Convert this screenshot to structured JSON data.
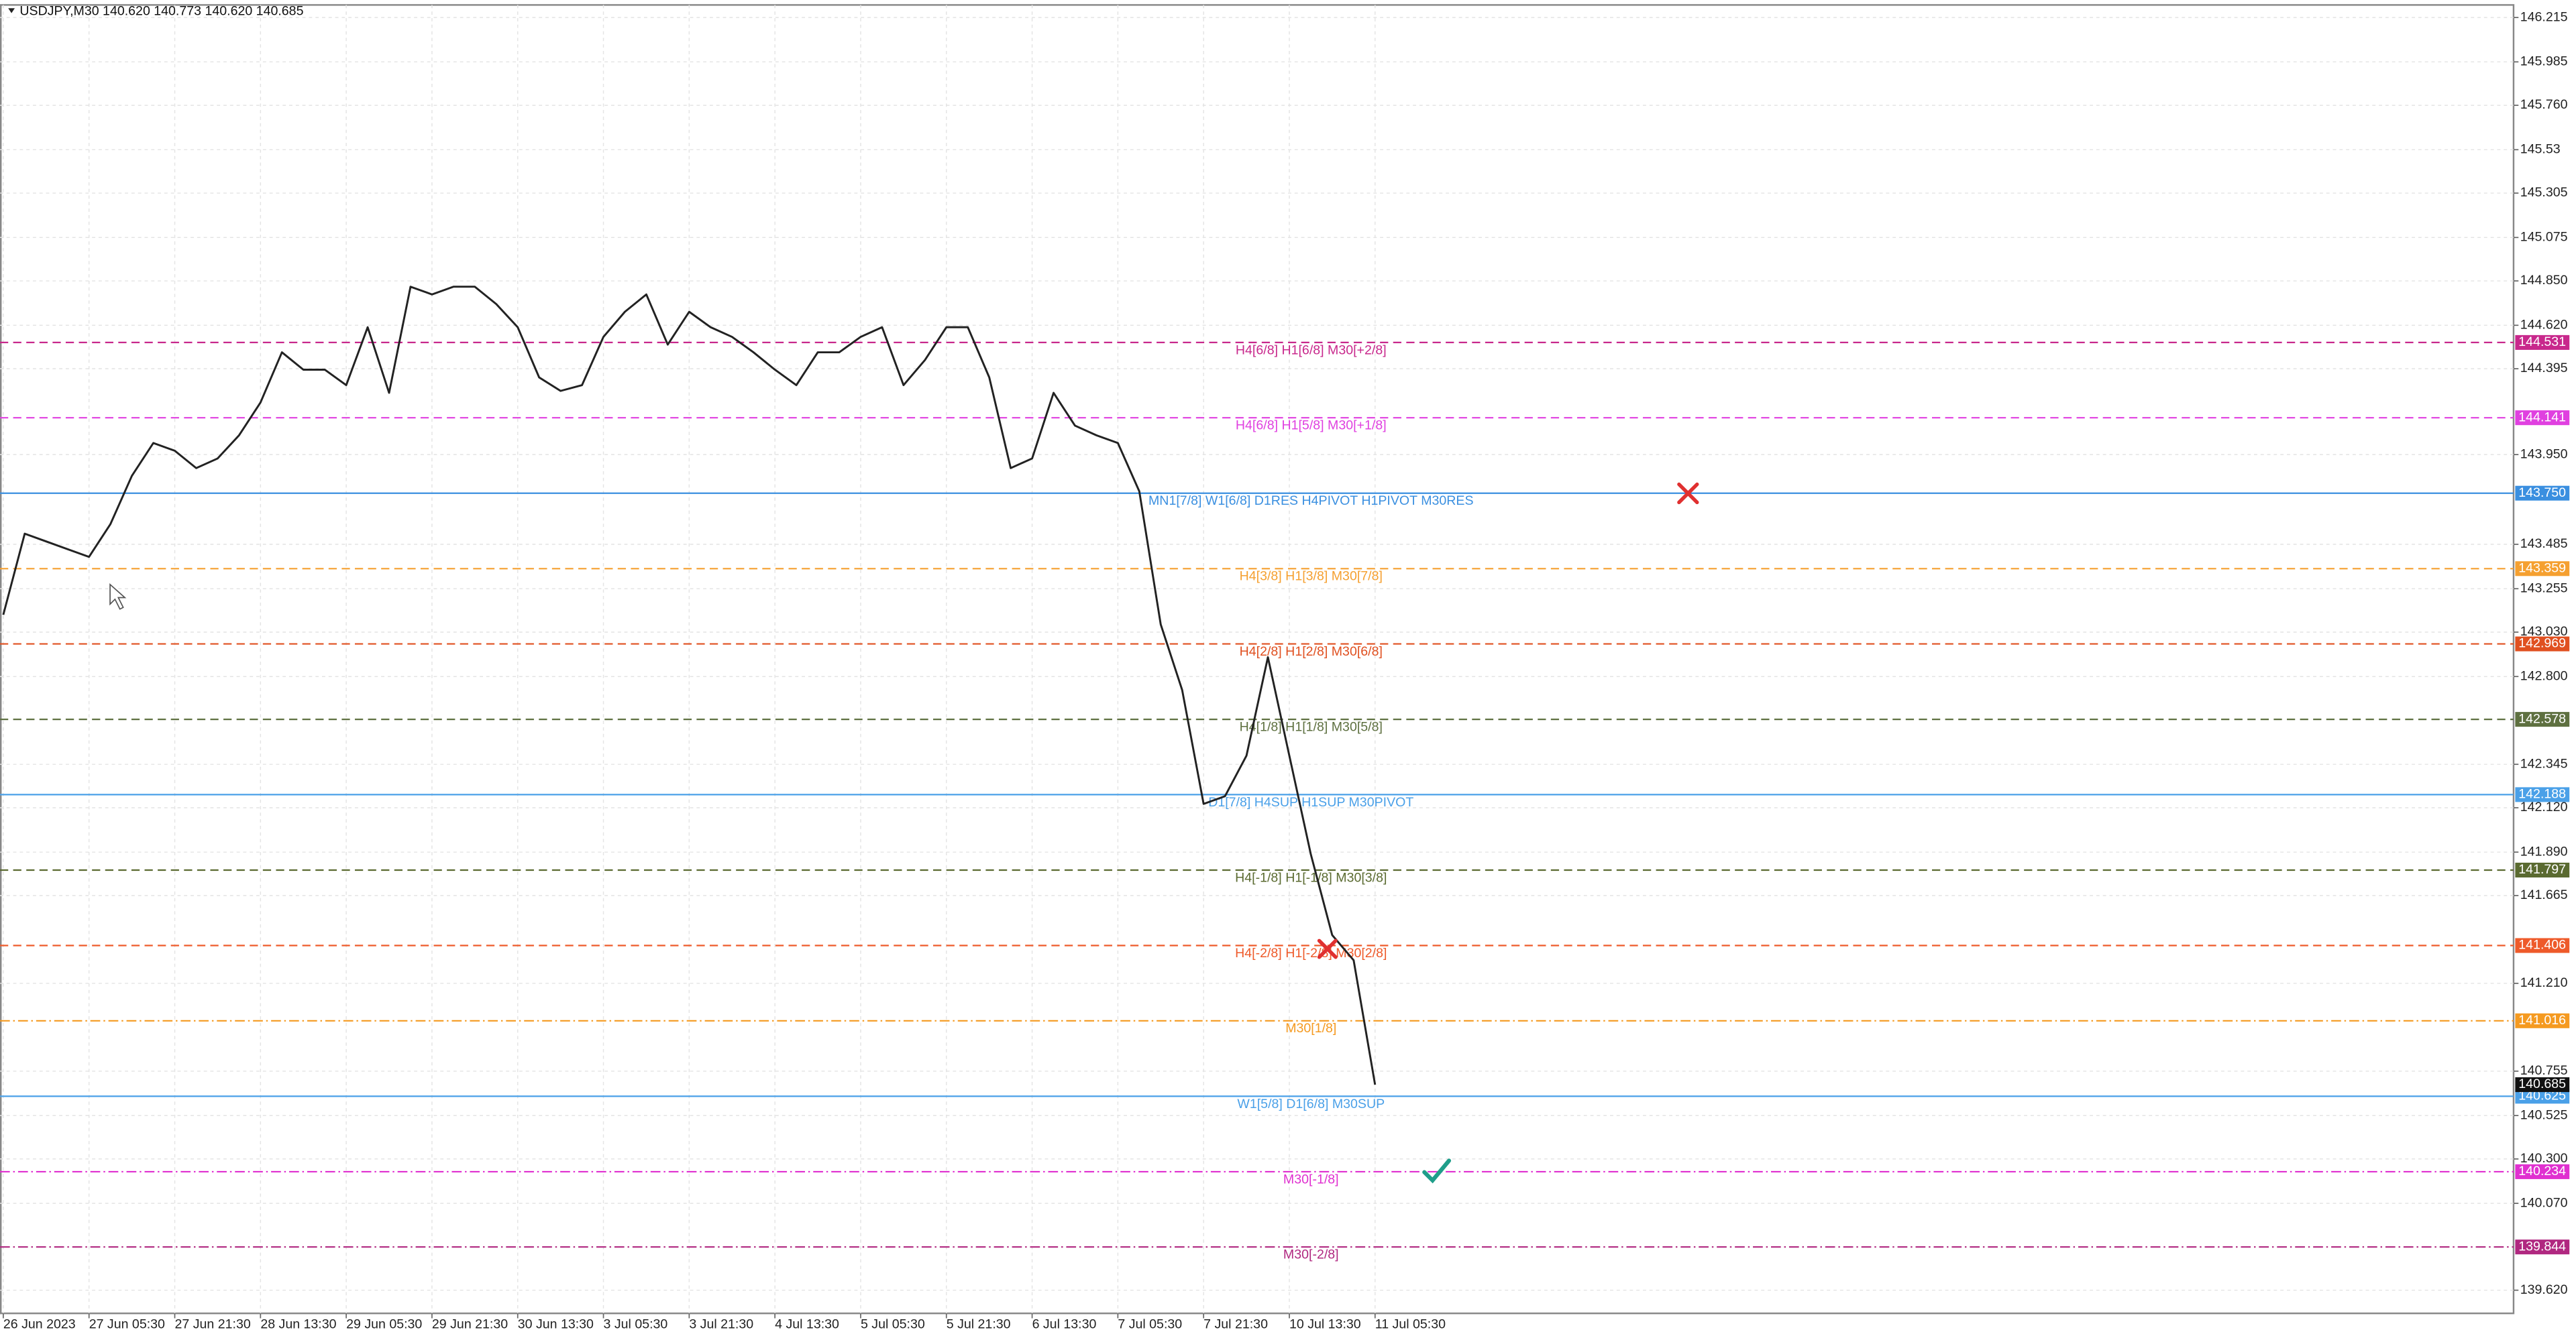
{
  "chart_data": {
    "type": "line",
    "title": "USDJPY,M30  140.620 140.773 140.620 140.685",
    "categories": [
      "26 Jun 2023",
      null,
      null,
      null,
      "27 Jun 05:30",
      null,
      null,
      null,
      "27 Jun 21:30",
      null,
      null,
      null,
      "28 Jun 13:30",
      null,
      null,
      null,
      "29 Jun 05:30",
      null,
      null,
      null,
      "29 Jun 21:30",
      null,
      null,
      null,
      "30 Jun 13:30",
      null,
      null,
      null,
      "3 Jul 05:30",
      null,
      null,
      null,
      "3 Jul 21:30",
      null,
      null,
      null,
      "4 Jul 13:30",
      null,
      null,
      null,
      "5 Jul 05:30",
      null,
      null,
      null,
      "5 Jul 21:30",
      null,
      null,
      null,
      "6 Jul 13:30",
      null,
      null,
      null,
      "7 Jul 05:30",
      null,
      null,
      null,
      "7 Jul 21:30",
      null,
      null,
      null,
      "10 Jul 13:30",
      null,
      null,
      null,
      "11 Jul 05:30"
    ],
    "series": [
      {
        "name": "USDJPY,M30",
        "color": "#222222",
        "values": [
          143.12,
          143.54,
          143.5,
          143.46,
          143.42,
          143.59,
          143.84,
          144.01,
          143.97,
          143.88,
          143.93,
          144.05,
          144.22,
          144.48,
          144.39,
          144.39,
          144.31,
          144.61,
          144.27,
          144.82,
          144.78,
          144.82,
          144.82,
          144.73,
          144.61,
          144.35,
          144.28,
          144.31,
          144.56,
          144.69,
          144.78,
          144.52,
          144.69,
          144.61,
          144.56,
          144.48,
          144.39,
          144.31,
          144.48,
          144.48,
          144.56,
          144.61,
          144.31,
          144.44,
          144.61,
          144.61,
          144.35,
          143.88,
          143.93,
          144.27,
          144.1,
          144.05,
          144.01,
          143.76,
          143.07,
          142.73,
          142.14,
          142.18,
          142.39,
          142.9,
          142.39,
          141.88,
          141.46,
          141.33,
          140.685
        ]
      }
    ],
    "ylim": [
      139.5,
      146.28
    ],
    "yticks": [
      146.215,
      145.985,
      {
        "value": 145.76,
        "label": "145.760"
      },
      145.53,
      145.305,
      145.075,
      {
        "value": 144.85,
        "label": "144.850"
      },
      {
        "value": 144.62,
        "label": "144.620"
      },
      144.395,
      {
        "value": 143.95,
        "label": "143.950"
      },
      143.485,
      143.255,
      {
        "value": 143.03,
        "label": "143.030"
      },
      {
        "value": 142.8,
        "label": "142.800"
      },
      142.345,
      {
        "value": 142.12,
        "label": "142.120"
      },
      {
        "value": 141.89,
        "label": "141.890"
      },
      141.665,
      {
        "value": 141.21,
        "label": "141.210"
      },
      140.755,
      140.525,
      {
        "value": 140.3,
        "label": "140.300"
      },
      {
        "value": 140.07,
        "label": "140.070"
      },
      {
        "value": 139.62,
        "label": "139.620"
      }
    ],
    "grid": true,
    "levels": [
      {
        "name": "H4[6/8] H1[6/8] M30[+2/8]",
        "value": 144.531,
        "color": "#c8288c",
        "style": "dash"
      },
      {
        "name": "H4[6/8] H1[5/8] M30[+1/8]",
        "value": 144.141,
        "color": "#e040e0",
        "style": "dash"
      },
      {
        "name": "MN1[7/8] W1[6/8] D1RES H4PIVOT H1PIVOT M30RES",
        "value": 143.75,
        "value_label": "143.750",
        "color": "#3a8fe0",
        "style": "solid"
      },
      {
        "name": "H4[3/8] H1[3/8] M30[7/8]",
        "value": 143.359,
        "color": "#f5a030",
        "style": "dash"
      },
      {
        "name": "H4[2/8] H1[2/8] M30[6/8]",
        "value": 142.969,
        "color": "#e05020",
        "style": "dash"
      },
      {
        "name": "H4[1/8] H1[1/8] M30[5/8]",
        "value": 142.578,
        "color": "#5e7040",
        "style": "dash"
      },
      {
        "name": "D1[7/8] H4SUP H1SUP M30PIVOT",
        "value": 142.188,
        "color": "#4aa0e8",
        "style": "solid"
      },
      {
        "name": "H4[-1/8] H1[-1/8] M30[3/8]",
        "value": 141.797,
        "color": "#5a6a30",
        "style": "dash"
      },
      {
        "name": "H4[-2/8] H1[-2/8] M30[2/8]",
        "value": 141.406,
        "color": "#ee5a2a",
        "style": "dash"
      },
      {
        "name": "M30[1/8]",
        "value": 141.016,
        "color": "#f59a20",
        "style": "dashdot"
      },
      {
        "name": "W1[5/8] D1[6/8] M30SUP",
        "value": 140.625,
        "color": "#4aa0e8",
        "style": "solid"
      },
      {
        "name": "M30[-1/8]",
        "value": 140.234,
        "color": "#e030d0",
        "style": "dashdot"
      },
      {
        "name": "M30[-2/8]",
        "value": 139.844,
        "color": "#b02880",
        "style": "dashdot"
      }
    ]
  }
}
